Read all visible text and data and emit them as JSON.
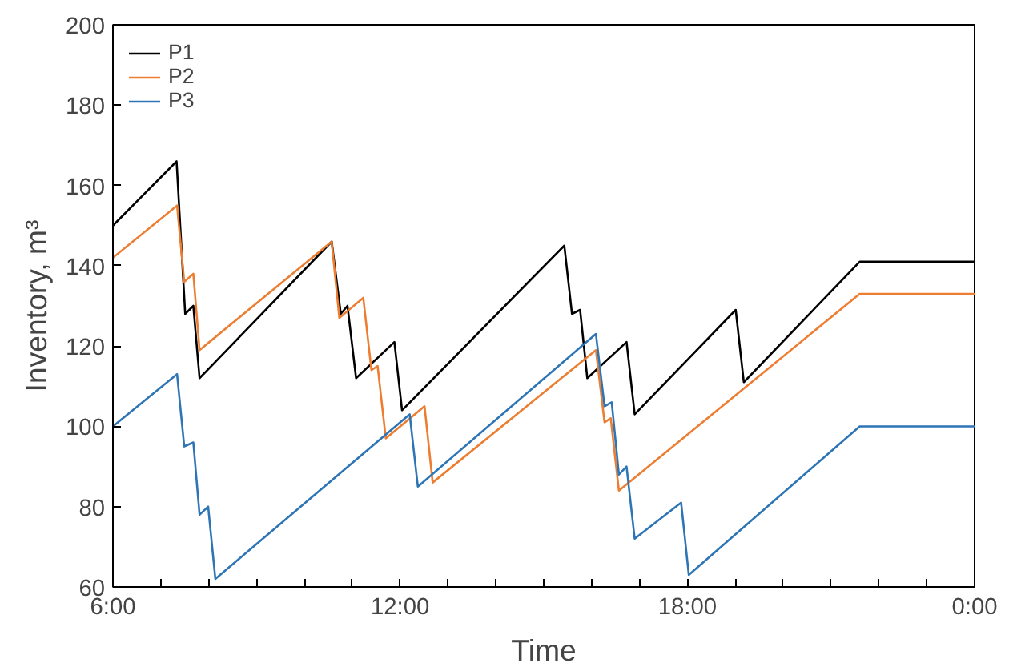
{
  "chart_data": {
    "type": "line",
    "xlabel": "Time",
    "ylabel": "Inventory, m³",
    "xlim": [
      6,
      24
    ],
    "ylim": [
      60,
      200
    ],
    "xticks": [
      {
        "value": 6,
        "label": "6:00"
      },
      {
        "value": 7,
        "label": null
      },
      {
        "value": 8,
        "label": null
      },
      {
        "value": 9,
        "label": null
      },
      {
        "value": 10,
        "label": null
      },
      {
        "value": 11,
        "label": null
      },
      {
        "value": 12,
        "label": "12:00"
      },
      {
        "value": 13,
        "label": null
      },
      {
        "value": 14,
        "label": null
      },
      {
        "value": 15,
        "label": null
      },
      {
        "value": 16,
        "label": null
      },
      {
        "value": 17,
        "label": null
      },
      {
        "value": 18,
        "label": "18:00"
      },
      {
        "value": 19,
        "label": null
      },
      {
        "value": 20,
        "label": null
      },
      {
        "value": 21,
        "label": null
      },
      {
        "value": 22,
        "label": null
      },
      {
        "value": 23,
        "label": null
      },
      {
        "value": 24,
        "label": "0:00"
      }
    ],
    "yticks": [
      60,
      80,
      100,
      120,
      140,
      160,
      180,
      200
    ],
    "grid": false,
    "legend": "top left",
    "marker": "none",
    "line_style": "solid",
    "series": [
      {
        "name": "P1",
        "color": "#000000",
        "x": [
          6,
          7.33,
          7.51,
          7.68,
          7.81,
          10.57,
          10.76,
          10.9,
          11.08,
          11.88,
          12.04,
          15.43,
          15.59,
          15.76,
          15.91,
          16.73,
          16.9,
          19.01,
          19.18,
          21.6,
          24
        ],
        "values": [
          150,
          166,
          128,
          130,
          112,
          146,
          128,
          130,
          112,
          121,
          104,
          145,
          128,
          129,
          112,
          121,
          103,
          129,
          111,
          141,
          141
        ]
      },
      {
        "name": "P2",
        "color": "#ed7d31",
        "x": [
          6,
          7.34,
          7.49,
          7.68,
          7.81,
          10.57,
          10.73,
          11.23,
          11.4,
          11.53,
          11.7,
          12.51,
          12.68,
          16.09,
          16.27,
          16.4,
          16.57,
          21.6,
          24
        ],
        "values": [
          142,
          155,
          136,
          138,
          119,
          146,
          127,
          132,
          114,
          115,
          97,
          105,
          86,
          119,
          101,
          102,
          84,
          133,
          133
        ]
      },
      {
        "name": "P3",
        "color": "#2e75b6",
        "x": [
          6,
          7.34,
          7.49,
          7.68,
          7.81,
          7.99,
          8.14,
          12.2,
          12.37,
          16.09,
          16.27,
          16.42,
          16.57,
          16.73,
          16.9,
          17.87,
          18.03,
          21.6,
          24
        ],
        "values": [
          100,
          113,
          95,
          96,
          78,
          80,
          62,
          103,
          85,
          123,
          105,
          106,
          88,
          90,
          72,
          81,
          63,
          100,
          100
        ]
      }
    ]
  }
}
